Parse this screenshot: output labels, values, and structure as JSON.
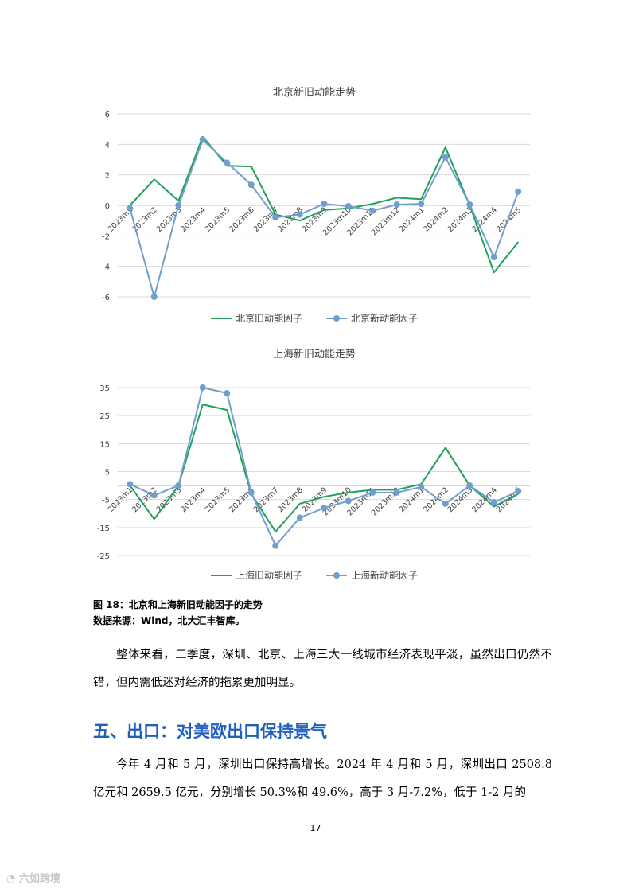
{
  "chart_data": [
    {
      "type": "line",
      "title": "北京新旧动能走势",
      "categories": [
        "2023m1",
        "2023m2",
        "2023m3",
        "2023m4",
        "2023m5",
        "2023m6",
        "2023m7",
        "2023m8",
        "2023m9",
        "2023m10",
        "2023m11",
        "2023m12",
        "2024m1",
        "2024m2",
        "2024m3",
        "2024m4",
        "2024m5"
      ],
      "yticks": [
        "6",
        "4",
        "2",
        "0",
        "-2",
        "-4",
        "-6"
      ],
      "ylim": [
        -6,
        6
      ],
      "grid": true,
      "legend": "bottom",
      "series": [
        {
          "name": "北京旧动能因子",
          "color": "#21a05a",
          "marker": false,
          "values": [
            0.0,
            1.7,
            0.3,
            4.5,
            2.6,
            2.55,
            -0.6,
            -1.0,
            -0.3,
            -0.2,
            0.1,
            0.5,
            0.4,
            3.8,
            0.0,
            -4.4,
            -2.4
          ]
        },
        {
          "name": "北京新动能因子",
          "color": "#6f9fcf",
          "marker": true,
          "values": [
            -0.2,
            -6.0,
            0.0,
            4.3,
            2.8,
            1.35,
            -0.8,
            -0.6,
            0.1,
            -0.05,
            -0.35,
            0.05,
            0.1,
            3.15,
            0.05,
            -3.4,
            0.9
          ]
        }
      ]
    },
    {
      "type": "line",
      "title": "上海新旧动能走势",
      "categories": [
        "2023m1",
        "2023m2",
        "2023m3",
        "2023m4",
        "2023m5",
        "2023m6",
        "2023m7",
        "2023m8",
        "2023m9",
        "2023m10",
        "2023m11",
        "2023m12",
        "2024m1",
        "2024m2",
        "2024m3",
        "2024m4",
        "2024m5"
      ],
      "yticks": [
        "35",
        "25",
        "15",
        "5",
        "-5",
        "-15",
        "-25"
      ],
      "ylim": [
        -25,
        35
      ],
      "grid": true,
      "legend": "bottom",
      "series": [
        {
          "name": "上海旧动能因子",
          "color": "#21a05a",
          "marker": false,
          "values": [
            0.0,
            -12.0,
            0.0,
            29.0,
            27.0,
            -3.0,
            -16.5,
            -6.5,
            -4.0,
            -2.5,
            -1.5,
            -1.5,
            0.5,
            13.5,
            0.0,
            -7.5,
            -3.0
          ]
        },
        {
          "name": "上海新动能因子",
          "color": "#6f9fcf",
          "marker": true,
          "values": [
            0.5,
            -3.5,
            0.0,
            35.0,
            33.0,
            -2.5,
            -21.5,
            -11.5,
            -8.0,
            -5.5,
            -2.5,
            -2.5,
            -0.5,
            -6.5,
            0.0,
            -6.0,
            -2.0
          ]
        }
      ]
    }
  ],
  "caption": {
    "figure": "图 18：北京和上海新旧动能因子的走势",
    "source": "数据来源：Wind，北大汇丰智库。"
  },
  "paragraph1": "整体来看，二季度，深圳、北京、上海三大一线城市经济表现平淡，虽然出口仍然不错，但内需低迷对经济的拖累更加明显。",
  "heading": "五、出口：对美欧出口保持景气",
  "paragraph2": "今年 4 月和 5 月，深圳出口保持高增长。2024 年 4 月和 5 月，深圳出口 2508.8 亿元和 2659.5 亿元，分别增长 50.3%和 49.6%，高于 3 月-7.2%，低于 1-2 月的",
  "page_number": "17",
  "watermark": "六如跨境"
}
